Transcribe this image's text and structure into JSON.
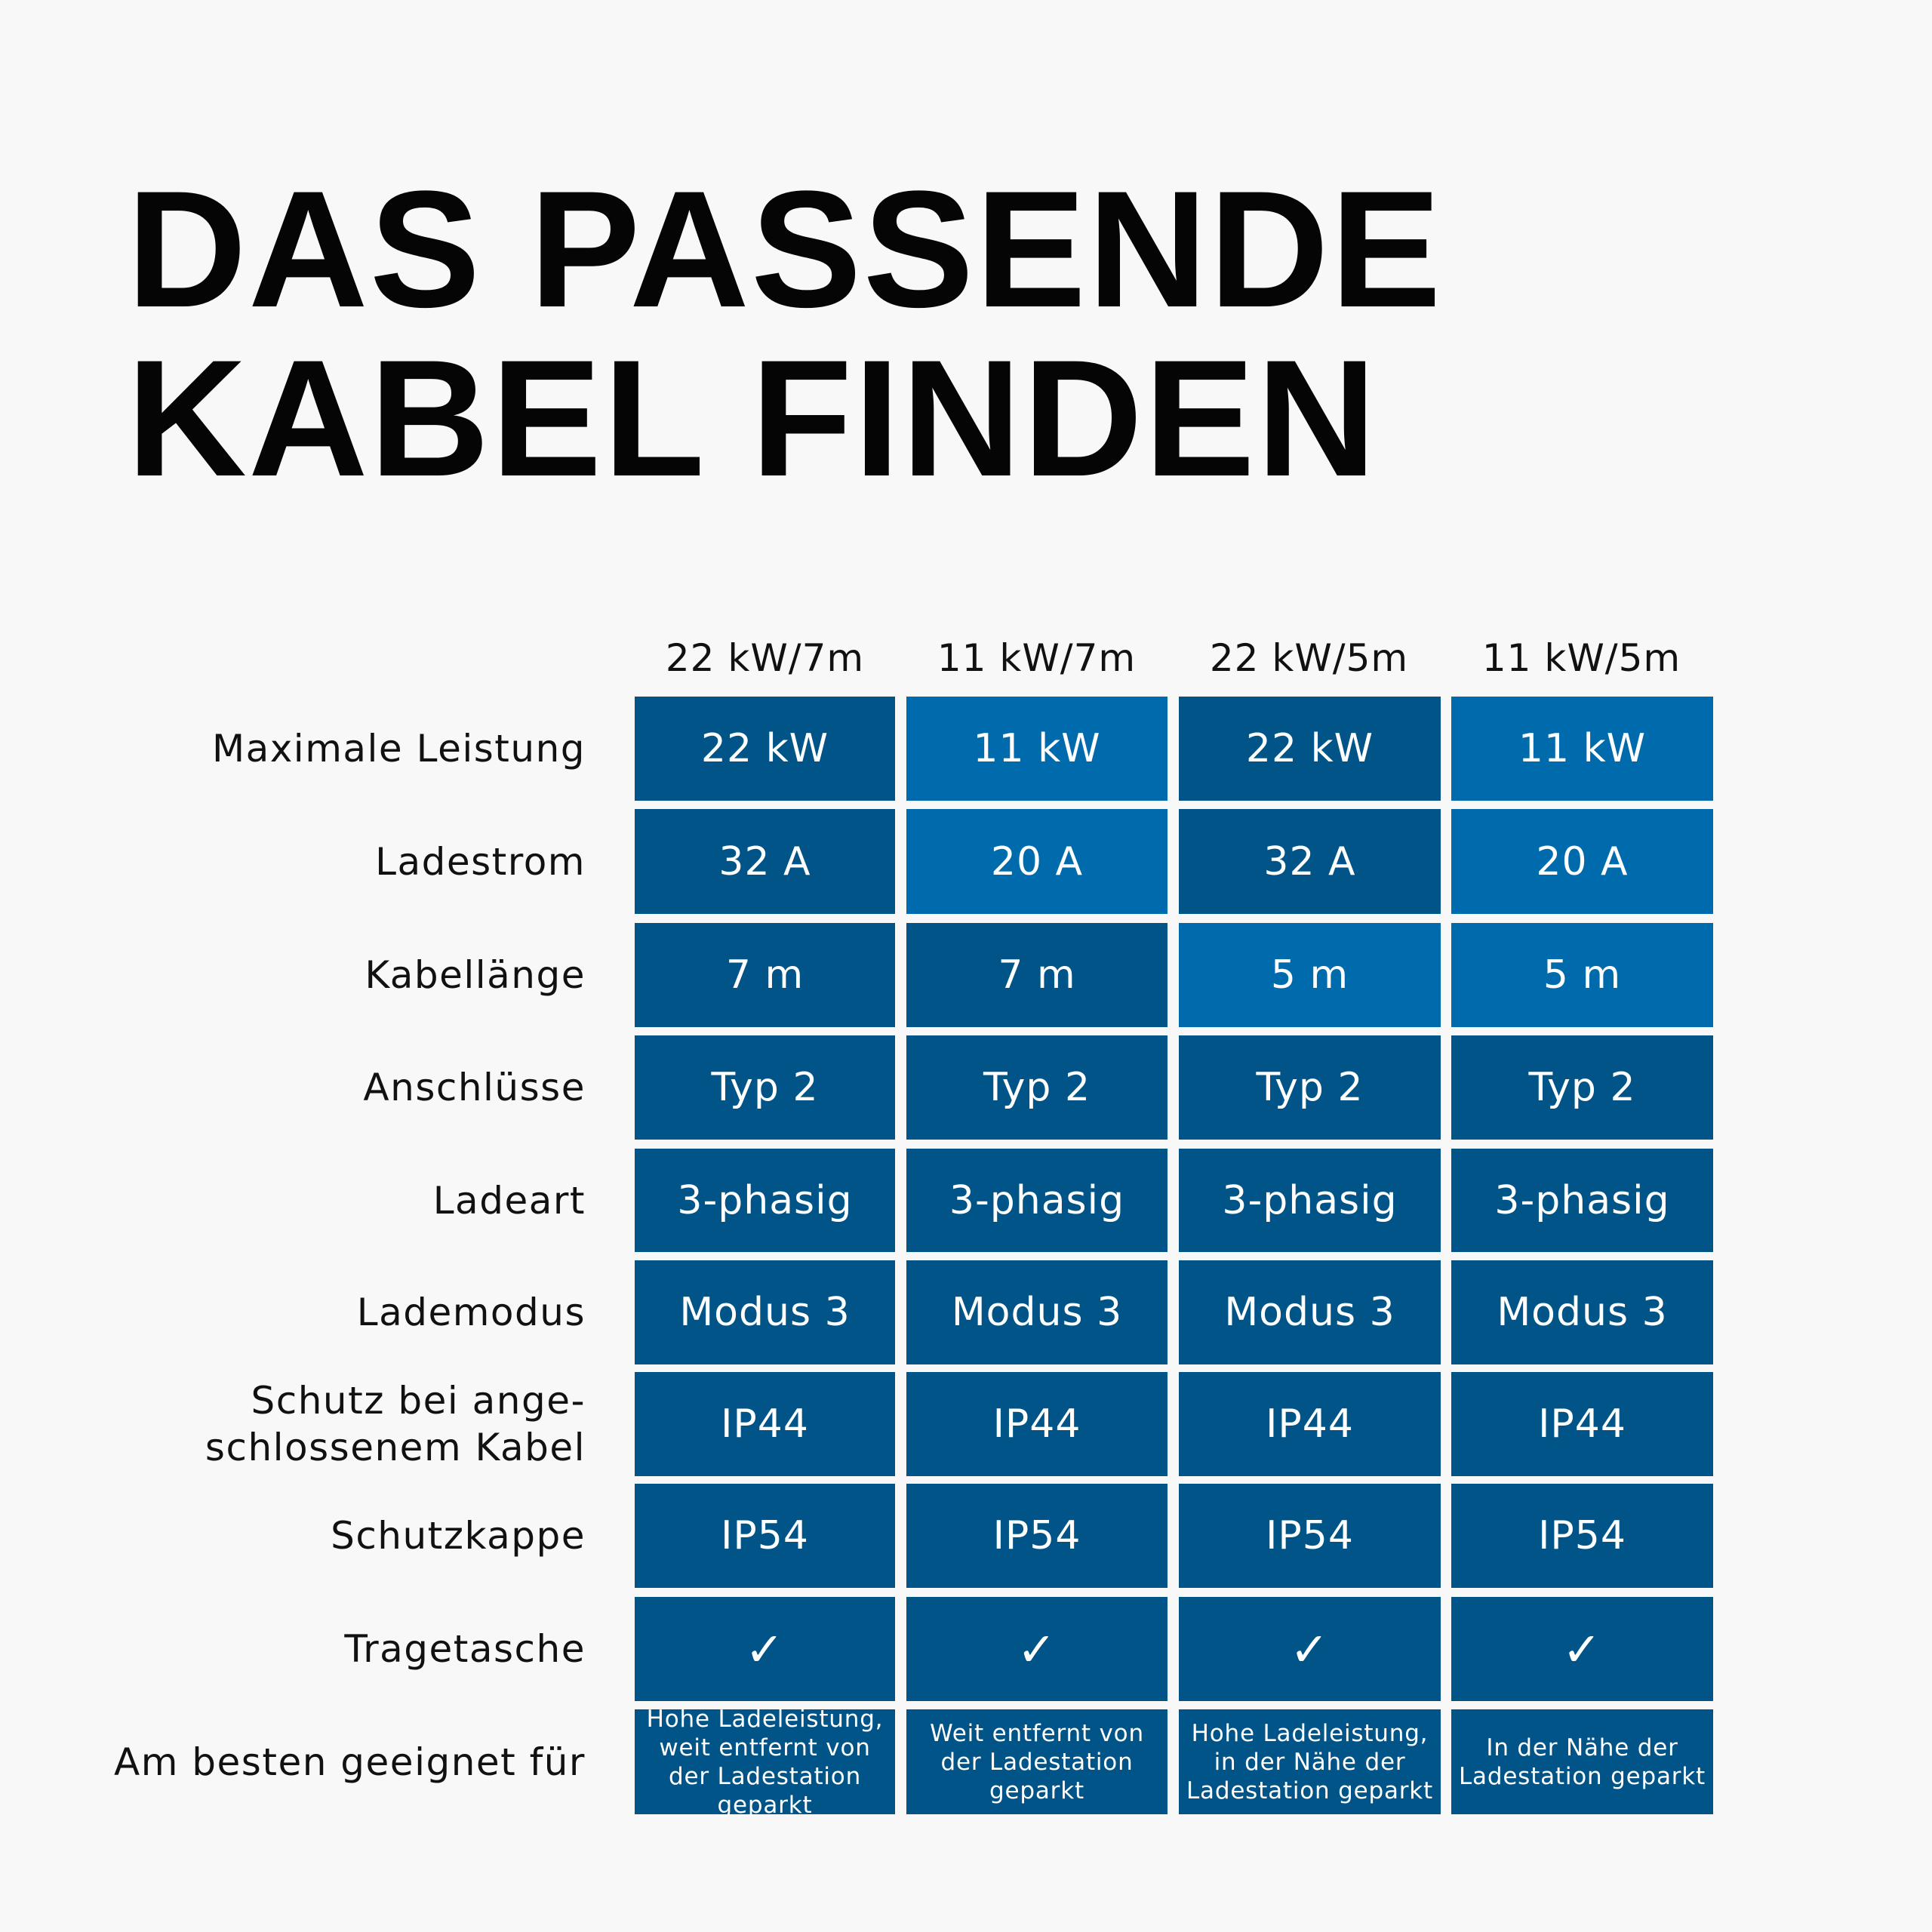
{
  "title_lines": [
    "DAS PASSENDE",
    "KABEL FINDEN"
  ],
  "columns": [
    "22 kW/7m",
    "11 kW/7m",
    "22 kW/5m",
    "11 kW/5m"
  ],
  "rows": [
    {
      "label": "Maximale Leistung",
      "values": [
        "22 kW",
        "11 kW",
        "22 kW",
        "11 kW"
      ],
      "shades": [
        "dark",
        "light",
        "dark",
        "light"
      ]
    },
    {
      "label": "Ladestrom",
      "values": [
        "32 A",
        "20 A",
        "32 A",
        "20 A"
      ],
      "shades": [
        "dark",
        "light",
        "dark",
        "light"
      ]
    },
    {
      "label": "Kabellänge",
      "values": [
        "7 m",
        "7 m",
        "5 m",
        "5 m"
      ],
      "shades": [
        "dark",
        "dark",
        "light",
        "light"
      ]
    },
    {
      "label": "Anschlüsse",
      "values": [
        "Typ 2",
        "Typ 2",
        "Typ 2",
        "Typ 2"
      ],
      "shades": [
        "dark",
        "dark",
        "dark",
        "dark"
      ]
    },
    {
      "label": "Ladeart",
      "values": [
        "3-phasig",
        "3-phasig",
        "3-phasig",
        "3-phasig"
      ],
      "shades": [
        "dark",
        "dark",
        "dark",
        "dark"
      ]
    },
    {
      "label": "Lademodus",
      "values": [
        "Modus 3",
        "Modus 3",
        "Modus 3",
        "Modus 3"
      ],
      "shades": [
        "dark",
        "dark",
        "dark",
        "dark"
      ]
    },
    {
      "label": "Schutz bei ange-\nschlossenem Kabel",
      "values": [
        "IP44",
        "IP44",
        "IP44",
        "IP44"
      ],
      "shades": [
        "dark",
        "dark",
        "dark",
        "dark"
      ]
    },
    {
      "label": "Schutzkappe",
      "values": [
        "IP54",
        "IP54",
        "IP54",
        "IP54"
      ],
      "shades": [
        "dark",
        "dark",
        "dark",
        "dark"
      ]
    },
    {
      "label": "Tragetasche",
      "values": [
        "✓",
        "✓",
        "✓",
        "✓"
      ],
      "shades": [
        "dark",
        "dark",
        "dark",
        "dark"
      ]
    },
    {
      "label": "Am besten geeignet für",
      "values": [
        "Hohe Ladeleistung, weit entfernt von der Ladestation geparkt",
        "Weit entfernt von der Ladestation geparkt",
        "Hohe Ladeleistung, in der Nähe der Ladestation geparkt",
        "In der Nähe der Ladestation geparkt"
      ],
      "shades": [
        "dark",
        "dark",
        "dark",
        "dark"
      ]
    }
  ],
  "colors": {
    "dark": "#005487",
    "light": "#006bac",
    "background": "#f8f8f8",
    "text": "#0b0b0b"
  }
}
